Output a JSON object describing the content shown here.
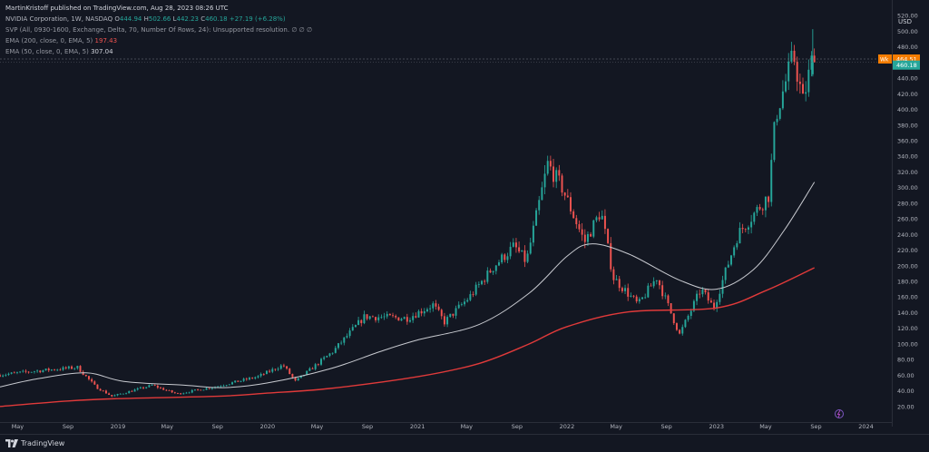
{
  "header": {
    "published": "MartinKristoff published on TradingView.com, Aug 28, 2023 08:26 UTC",
    "symbol": "NVIDIA Corporation, 1W, NASDAQ",
    "open_label": "O",
    "open": "444.94",
    "high_label": "H",
    "high": "502.66",
    "low_label": "L",
    "low": "442.23",
    "close_label": "C",
    "close": "460.18",
    "change": "+27.19 (+6.28%)",
    "svp": "SVP (All, 0930-1600, Exchange, Delta, 70, Number Of Rows, 24): Unsupported resolution.",
    "svp_icons": "∅ ∅ ∅",
    "ema200_label": "EMA (200, close, 0, EMA, 5)",
    "ema200_value": "197.43",
    "ema50_label": "EMA (50, close, 0, EMA, 5)",
    "ema50_value": "307.04"
  },
  "currency": "USD",
  "badges": {
    "orange_prefix": "Wk",
    "orange_value": "464.51",
    "teal_value": "460.18"
  },
  "footer": {
    "brand": "TradingView"
  },
  "colors": {
    "background": "#131722",
    "up": "#26a69a",
    "down": "#ef5350",
    "ema200": "#e03a3a",
    "ema50": "#c8cad0"
  },
  "chart_data": {
    "type": "candlestick",
    "title": "NVIDIA Corporation, 1W, NASDAQ",
    "grid": false,
    "y_ticks": [
      20,
      40,
      60,
      80,
      100,
      120,
      140,
      160,
      180,
      200,
      220,
      240,
      260,
      280,
      300,
      320,
      340,
      360,
      380,
      400,
      420,
      440,
      460,
      480,
      500,
      520
    ],
    "ylim": [
      0,
      540
    ],
    "xlim": [
      "2018-03-19",
      "2024-03-04"
    ],
    "x_ticks": [
      {
        "label": "May",
        "date": "2018-05-01"
      },
      {
        "label": "Sep",
        "date": "2018-09-01"
      },
      {
        "label": "2019",
        "date": "2019-01-01"
      },
      {
        "label": "May",
        "date": "2019-05-01"
      },
      {
        "label": "Sep",
        "date": "2019-09-01"
      },
      {
        "label": "2020",
        "date": "2020-01-01"
      },
      {
        "label": "May",
        "date": "2020-05-01"
      },
      {
        "label": "Sep",
        "date": "2020-09-01"
      },
      {
        "label": "2021",
        "date": "2021-01-01"
      },
      {
        "label": "May",
        "date": "2021-05-01"
      },
      {
        "label": "Sep",
        "date": "2021-09-01"
      },
      {
        "label": "2022",
        "date": "2022-01-01"
      },
      {
        "label": "May",
        "date": "2022-05-01"
      },
      {
        "label": "Sep",
        "date": "2022-09-01"
      },
      {
        "label": "2023",
        "date": "2023-01-01"
      },
      {
        "label": "May",
        "date": "2023-05-01"
      },
      {
        "label": "Sep",
        "date": "2023-09-01"
      },
      {
        "label": "2024",
        "date": "2024-01-01"
      }
    ],
    "price_keypoints": [
      {
        "date": "2018-03-19",
        "price": 60
      },
      {
        "date": "2018-06-15",
        "price": 65
      },
      {
        "date": "2018-10-01",
        "price": 70
      },
      {
        "date": "2018-11-15",
        "price": 45
      },
      {
        "date": "2018-12-24",
        "price": 33
      },
      {
        "date": "2019-04-01",
        "price": 47
      },
      {
        "date": "2019-06-01",
        "price": 36
      },
      {
        "date": "2019-09-01",
        "price": 45
      },
      {
        "date": "2019-12-15",
        "price": 58
      },
      {
        "date": "2020-02-15",
        "price": 73
      },
      {
        "date": "2020-03-16",
        "price": 52
      },
      {
        "date": "2020-06-15",
        "price": 90
      },
      {
        "date": "2020-09-01",
        "price": 135
      },
      {
        "date": "2020-12-15",
        "price": 133
      },
      {
        "date": "2021-02-15",
        "price": 150
      },
      {
        "date": "2021-03-15",
        "price": 128
      },
      {
        "date": "2021-05-15",
        "price": 160
      },
      {
        "date": "2021-07-15",
        "price": 200
      },
      {
        "date": "2021-09-01",
        "price": 225
      },
      {
        "date": "2021-10-01",
        "price": 205
      },
      {
        "date": "2021-11-22",
        "price": 330
      },
      {
        "date": "2021-12-27",
        "price": 300
      },
      {
        "date": "2022-02-20",
        "price": 230
      },
      {
        "date": "2022-04-01",
        "price": 270
      },
      {
        "date": "2022-05-01",
        "price": 185
      },
      {
        "date": "2022-07-01",
        "price": 150
      },
      {
        "date": "2022-08-15",
        "price": 185
      },
      {
        "date": "2022-10-10",
        "price": 112
      },
      {
        "date": "2022-12-01",
        "price": 170
      },
      {
        "date": "2023-01-01",
        "price": 146
      },
      {
        "date": "2023-03-01",
        "price": 240
      },
      {
        "date": "2023-05-15",
        "price": 290
      },
      {
        "date": "2023-06-01",
        "price": 390
      },
      {
        "date": "2023-07-15",
        "price": 470
      },
      {
        "date": "2023-08-07",
        "price": 410
      },
      {
        "date": "2023-08-28",
        "price": 460.18
      }
    ],
    "ema50": [
      {
        "date": "2018-03-19",
        "value": 45
      },
      {
        "date": "2018-06-15",
        "value": 55
      },
      {
        "date": "2018-10-15",
        "value": 63
      },
      {
        "date": "2019-01-15",
        "value": 52
      },
      {
        "date": "2019-06-15",
        "value": 47
      },
      {
        "date": "2019-09-15",
        "value": 44
      },
      {
        "date": "2020-01-01",
        "value": 50
      },
      {
        "date": "2020-06-01",
        "value": 68
      },
      {
        "date": "2020-10-01",
        "value": 90
      },
      {
        "date": "2021-01-01",
        "value": 105
      },
      {
        "date": "2021-06-01",
        "value": 125
      },
      {
        "date": "2021-10-01",
        "value": 165
      },
      {
        "date": "2022-01-01",
        "value": 212
      },
      {
        "date": "2022-03-01",
        "value": 228
      },
      {
        "date": "2022-06-01",
        "value": 215
      },
      {
        "date": "2022-10-01",
        "value": 182
      },
      {
        "date": "2023-01-01",
        "value": 170
      },
      {
        "date": "2023-04-01",
        "value": 195
      },
      {
        "date": "2023-06-15",
        "value": 245
      },
      {
        "date": "2023-08-28",
        "value": 307.04
      }
    ],
    "ema200": [
      {
        "date": "2018-03-19",
        "value": 20
      },
      {
        "date": "2018-09-01",
        "value": 27
      },
      {
        "date": "2019-01-01",
        "value": 30
      },
      {
        "date": "2019-09-01",
        "value": 33
      },
      {
        "date": "2020-01-01",
        "value": 37
      },
      {
        "date": "2020-06-01",
        "value": 43
      },
      {
        "date": "2021-01-01",
        "value": 58
      },
      {
        "date": "2021-06-01",
        "value": 75
      },
      {
        "date": "2021-10-01",
        "value": 100
      },
      {
        "date": "2022-01-01",
        "value": 122
      },
      {
        "date": "2022-06-01",
        "value": 141
      },
      {
        "date": "2023-01-01",
        "value": 146
      },
      {
        "date": "2023-05-01",
        "value": 168
      },
      {
        "date": "2023-08-28",
        "value": 197.43
      }
    ]
  }
}
